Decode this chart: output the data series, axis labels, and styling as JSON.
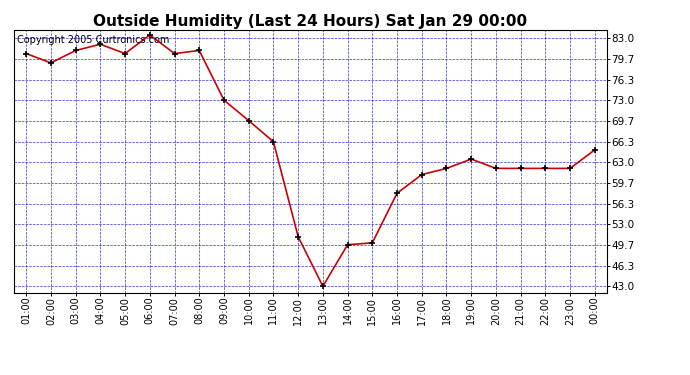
{
  "title": "Outside Humidity (Last 24 Hours) Sat Jan 29 00:00",
  "copyright": "Copyright 2005 Curtronics.com",
  "x_labels": [
    "01:00",
    "02:00",
    "03:00",
    "04:00",
    "05:00",
    "06:00",
    "07:00",
    "08:00",
    "09:00",
    "10:00",
    "11:00",
    "12:00",
    "13:00",
    "14:00",
    "15:00",
    "16:00",
    "17:00",
    "18:00",
    "19:00",
    "20:00",
    "21:00",
    "22:00",
    "23:00",
    "00:00"
  ],
  "x_values": [
    1,
    2,
    3,
    4,
    5,
    6,
    7,
    8,
    9,
    10,
    11,
    12,
    13,
    14,
    15,
    16,
    17,
    18,
    19,
    20,
    21,
    22,
    23,
    24
  ],
  "y_values": [
    80.5,
    79.0,
    81.0,
    82.0,
    80.5,
    83.5,
    80.5,
    81.0,
    73.0,
    69.7,
    66.3,
    51.0,
    43.0,
    49.7,
    50.0,
    58.0,
    61.0,
    62.0,
    63.5,
    62.0,
    62.0,
    62.0,
    62.0,
    65.0
  ],
  "y_ticks": [
    43.0,
    46.3,
    49.7,
    53.0,
    56.3,
    59.7,
    63.0,
    66.3,
    69.7,
    73.0,
    76.3,
    79.7,
    83.0
  ],
  "ylim": [
    42.0,
    84.3
  ],
  "xlim": [
    0.5,
    24.5
  ],
  "line_color": "#cc0000",
  "marker_color": "#000000",
  "plot_bg": "#ffffff",
  "fig_bg": "#ffffff",
  "grid_color": "#0000bb",
  "title_fontsize": 11,
  "copyright_fontsize": 7
}
